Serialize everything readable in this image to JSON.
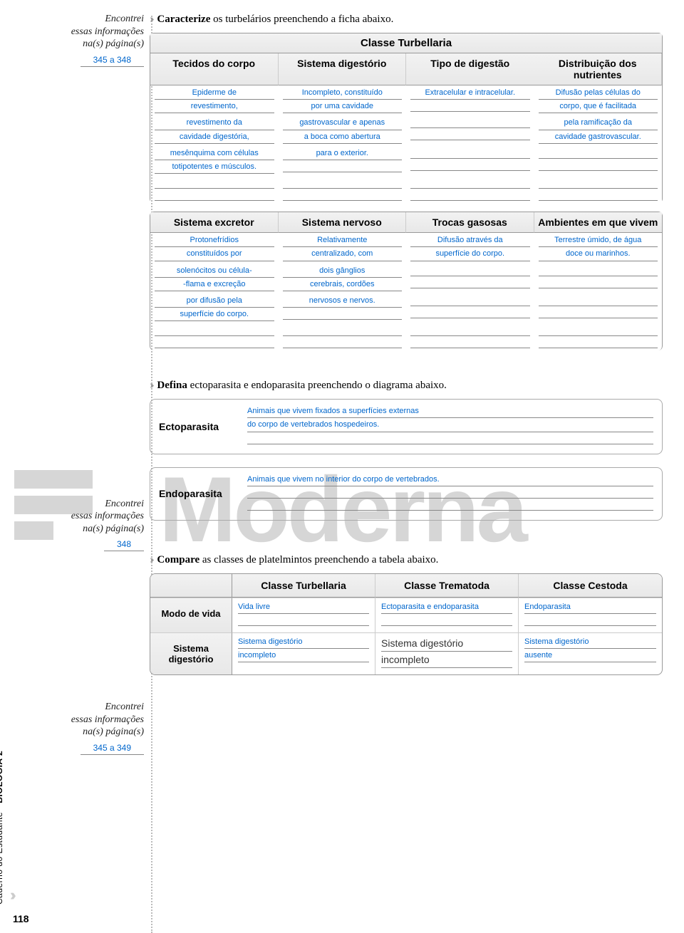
{
  "side1": {
    "encontrei": "Encontrei\nessas informações\nna(s) página(s)",
    "ref": "345 a 348"
  },
  "task1": {
    "chev": "››",
    "title_bold": "Caracterize",
    "title_rest": " os turbelários preenchendo a ficha abaixo.",
    "classe": "Classe Turbellaria",
    "headers": [
      "Tecidos do corpo",
      "Sistema digestório",
      "Tipo de digestão",
      "Distribuição dos nutrientes"
    ],
    "row1": [
      [
        "Epiderme de",
        "revestimento,"
      ],
      [
        "Incompleto, constituído",
        "por uma cavidade"
      ],
      [
        "Extracelular e intracelular.",
        ""
      ],
      [
        "Difusão pelas células do",
        "corpo, que é facilitada"
      ]
    ],
    "row2": [
      [
        "revestimento da",
        "cavidade digestória,"
      ],
      [
        "gastrovascular e apenas",
        "a boca como abertura"
      ],
      [
        "",
        ""
      ],
      [
        "pela ramificação da",
        "cavidade gastrovascular."
      ]
    ],
    "row3": [
      [
        "mesênquima com células",
        "totipotentes e músculos."
      ],
      [
        "para o exterior.",
        ""
      ],
      [
        "",
        ""
      ],
      [
        "",
        ""
      ]
    ],
    "headers2": [
      "Sistema excretor",
      "Sistema nervoso",
      "Trocas gasosas",
      "Ambientes em que vivem"
    ],
    "r2_1": [
      [
        "Protonefrídios",
        "constituídos por"
      ],
      [
        "Relativamente",
        "centralizado, com"
      ],
      [
        "Difusão através da",
        "superfície do corpo."
      ],
      [
        "Terrestre úmido, de água",
        "doce ou marinhos."
      ]
    ],
    "r2_2": [
      [
        "solenócitos ou célula-",
        "-flama e excreção"
      ],
      [
        "dois gânglios",
        "cerebrais, cordões"
      ],
      [
        "",
        ""
      ],
      [
        "",
        ""
      ]
    ],
    "r2_3": [
      [
        "por difusão pela",
        "superfície do corpo."
      ],
      [
        "nervosos e nervos.",
        ""
      ],
      [
        "",
        ""
      ],
      [
        "",
        ""
      ]
    ]
  },
  "side2": {
    "ref": "348"
  },
  "task2": {
    "title_bold": "Defina",
    "title_rest": " ectoparasita e endoparasita preenchendo o diagrama abaixo.",
    "ecto_label": "Ectoparasita",
    "ecto_lines": [
      "Animais que vivem fixados a superfícies externas",
      "do corpo de vertebrados hospedeiros.",
      ""
    ],
    "endo_label": "Endoparasita",
    "endo_lines": [
      "Animais que vivem no interior do corpo de vertebrados.",
      "",
      ""
    ]
  },
  "side3": {
    "ref": "345 a 349"
  },
  "task3": {
    "title_bold": "Compare",
    "title_rest": " as classes de platelmintos preenchendo a tabela abaixo.",
    "cols": [
      "Classe Turbellaria",
      "Classe Trematoda",
      "Classe Cestoda"
    ],
    "rows": [
      {
        "label": "Modo de vida",
        "cells": [
          [
            "Vida livre",
            ""
          ],
          [
            "Ectoparasita e endoparasita",
            ""
          ],
          [
            "Endoparasita",
            ""
          ]
        ]
      },
      {
        "label": "Sistema digestório",
        "cells": [
          [
            "Sistema digestório",
            "incompleto"
          ],
          [
            "_filled_Sistema digestório",
            "_filled_incompleto"
          ],
          [
            "Sistema digestório",
            "ausente"
          ]
        ]
      }
    ]
  },
  "spine": {
    "text": "Caderno do Estudante",
    "bold": "· BIOLOGIA 2"
  },
  "pagenum": "118",
  "watermark": "Moderna"
}
